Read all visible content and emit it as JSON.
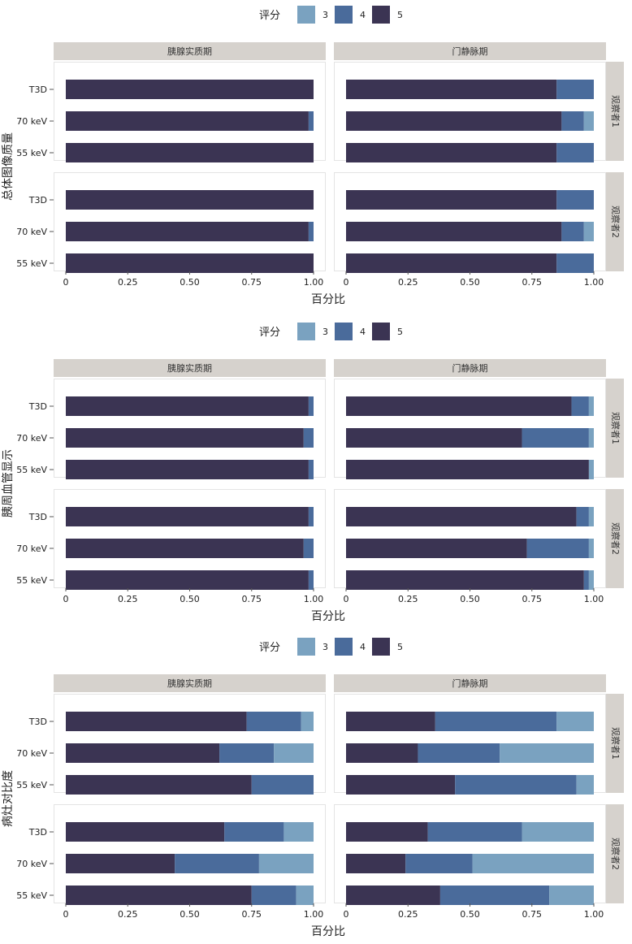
{
  "colors": {
    "3": "#7aa2c0",
    "4": "#4a6b9b",
    "5": "#3b3453",
    "strip_bg": "#d6d2cd",
    "panel_border": "#e4e4e4"
  },
  "chart_data": [
    {
      "type": "bar",
      "orientation": "horizontal",
      "stacked": true,
      "ylabel": "总体图像质量",
      "xlabel": "百分比",
      "xlim": [
        0,
        1
      ],
      "xticks": [
        "0",
        "0.25",
        "0.50",
        "0.75",
        "1.00"
      ],
      "legend": {
        "title": "评分",
        "entries": [
          "3",
          "4",
          "5"
        ],
        "position": "top"
      },
      "columns": [
        "胰腺实质期",
        "门静脉期"
      ],
      "rows": [
        "观察者1",
        "观察者2"
      ],
      "categories": [
        "T3D",
        "70 keV",
        "55 keV"
      ],
      "panels": [
        {
          "column": "胰腺实质期",
          "row": "观察者1",
          "series": [
            {
              "name": "5",
              "values": [
                1.0,
                0.98,
                1.0
              ]
            },
            {
              "name": "4",
              "values": [
                0.0,
                0.02,
                0.0
              ]
            },
            {
              "name": "3",
              "values": [
                0.0,
                0.0,
                0.0
              ]
            }
          ]
        },
        {
          "column": "门静脉期",
          "row": "观察者1",
          "series": [
            {
              "name": "5",
              "values": [
                0.85,
                0.87,
                0.85
              ]
            },
            {
              "name": "4",
              "values": [
                0.15,
                0.09,
                0.15
              ]
            },
            {
              "name": "3",
              "values": [
                0.0,
                0.04,
                0.0
              ]
            }
          ]
        },
        {
          "column": "胰腺实质期",
          "row": "观察者2",
          "series": [
            {
              "name": "5",
              "values": [
                1.0,
                0.98,
                1.0
              ]
            },
            {
              "name": "4",
              "values": [
                0.0,
                0.02,
                0.0
              ]
            },
            {
              "name": "3",
              "values": [
                0.0,
                0.0,
                0.0
              ]
            }
          ]
        },
        {
          "column": "门静脉期",
          "row": "观察者2",
          "series": [
            {
              "name": "5",
              "values": [
                0.85,
                0.87,
                0.85
              ]
            },
            {
              "name": "4",
              "values": [
                0.15,
                0.09,
                0.15
              ]
            },
            {
              "name": "3",
              "values": [
                0.0,
                0.04,
                0.0
              ]
            }
          ]
        }
      ]
    },
    {
      "type": "bar",
      "orientation": "horizontal",
      "stacked": true,
      "ylabel": "胰周血管显示",
      "xlabel": "百分比",
      "xlim": [
        0,
        1
      ],
      "xticks": [
        "0",
        "0.25",
        "0.50",
        "0.75",
        "1.00"
      ],
      "legend": {
        "title": "评分",
        "entries": [
          "3",
          "4",
          "5"
        ],
        "position": "top"
      },
      "columns": [
        "胰腺实质期",
        "门静脉期"
      ],
      "rows": [
        "观察者1",
        "观察者2"
      ],
      "categories": [
        "T3D",
        "70 keV",
        "55 keV"
      ],
      "panels": [
        {
          "column": "胰腺实质期",
          "row": "观察者1",
          "series": [
            {
              "name": "5",
              "values": [
                0.98,
                0.96,
                0.98
              ]
            },
            {
              "name": "4",
              "values": [
                0.02,
                0.04,
                0.02
              ]
            },
            {
              "name": "3",
              "values": [
                0.0,
                0.0,
                0.0
              ]
            }
          ]
        },
        {
          "column": "门静脉期",
          "row": "观察者1",
          "series": [
            {
              "name": "5",
              "values": [
                0.91,
                0.71,
                0.98
              ]
            },
            {
              "name": "4",
              "values": [
                0.07,
                0.27,
                0.0
              ]
            },
            {
              "name": "3",
              "values": [
                0.02,
                0.02,
                0.02
              ]
            }
          ]
        },
        {
          "column": "胰腺实质期",
          "row": "观察者2",
          "series": [
            {
              "name": "5",
              "values": [
                0.98,
                0.96,
                0.98
              ]
            },
            {
              "name": "4",
              "values": [
                0.02,
                0.04,
                0.02
              ]
            },
            {
              "name": "3",
              "values": [
                0.0,
                0.0,
                0.0
              ]
            }
          ]
        },
        {
          "column": "门静脉期",
          "row": "观察者2",
          "series": [
            {
              "name": "5",
              "values": [
                0.93,
                0.73,
                0.96
              ]
            },
            {
              "name": "4",
              "values": [
                0.05,
                0.25,
                0.02
              ]
            },
            {
              "name": "3",
              "values": [
                0.02,
                0.02,
                0.02
              ]
            }
          ]
        }
      ]
    },
    {
      "type": "bar",
      "orientation": "horizontal",
      "stacked": true,
      "ylabel": "病灶对比度",
      "xlabel": "百分比",
      "xlim": [
        0,
        1
      ],
      "xticks": [
        "0",
        "0.25",
        "0.50",
        "0.75",
        "1.00"
      ],
      "legend": {
        "title": "评分",
        "entries": [
          "3",
          "4",
          "5"
        ],
        "position": "top"
      },
      "columns": [
        "胰腺实质期",
        "门静脉期"
      ],
      "rows": [
        "观察者1",
        "观察者2"
      ],
      "categories": [
        "T3D",
        "70 keV",
        "55 keV"
      ],
      "panels": [
        {
          "column": "胰腺实质期",
          "row": "观察者1",
          "series": [
            {
              "name": "5",
              "values": [
                0.73,
                0.62,
                0.75
              ]
            },
            {
              "name": "4",
              "values": [
                0.22,
                0.22,
                0.25
              ]
            },
            {
              "name": "3",
              "values": [
                0.05,
                0.16,
                0.0
              ]
            }
          ]
        },
        {
          "column": "门静脉期",
          "row": "观察者1",
          "series": [
            {
              "name": "5",
              "values": [
                0.36,
                0.29,
                0.44
              ]
            },
            {
              "name": "4",
              "values": [
                0.49,
                0.33,
                0.49
              ]
            },
            {
              "name": "3",
              "values": [
                0.15,
                0.38,
                0.07
              ]
            }
          ]
        },
        {
          "column": "胰腺实质期",
          "row": "观察者2",
          "series": [
            {
              "name": "5",
              "values": [
                0.64,
                0.44,
                0.75
              ]
            },
            {
              "name": "4",
              "values": [
                0.24,
                0.34,
                0.18
              ]
            },
            {
              "name": "3",
              "values": [
                0.12,
                0.22,
                0.07
              ]
            }
          ]
        },
        {
          "column": "门静脉期",
          "row": "观察者2",
          "series": [
            {
              "name": "5",
              "values": [
                0.33,
                0.24,
                0.38
              ]
            },
            {
              "name": "4",
              "values": [
                0.38,
                0.27,
                0.44
              ]
            },
            {
              "name": "3",
              "values": [
                0.29,
                0.49,
                0.18
              ]
            }
          ]
        }
      ]
    }
  ]
}
